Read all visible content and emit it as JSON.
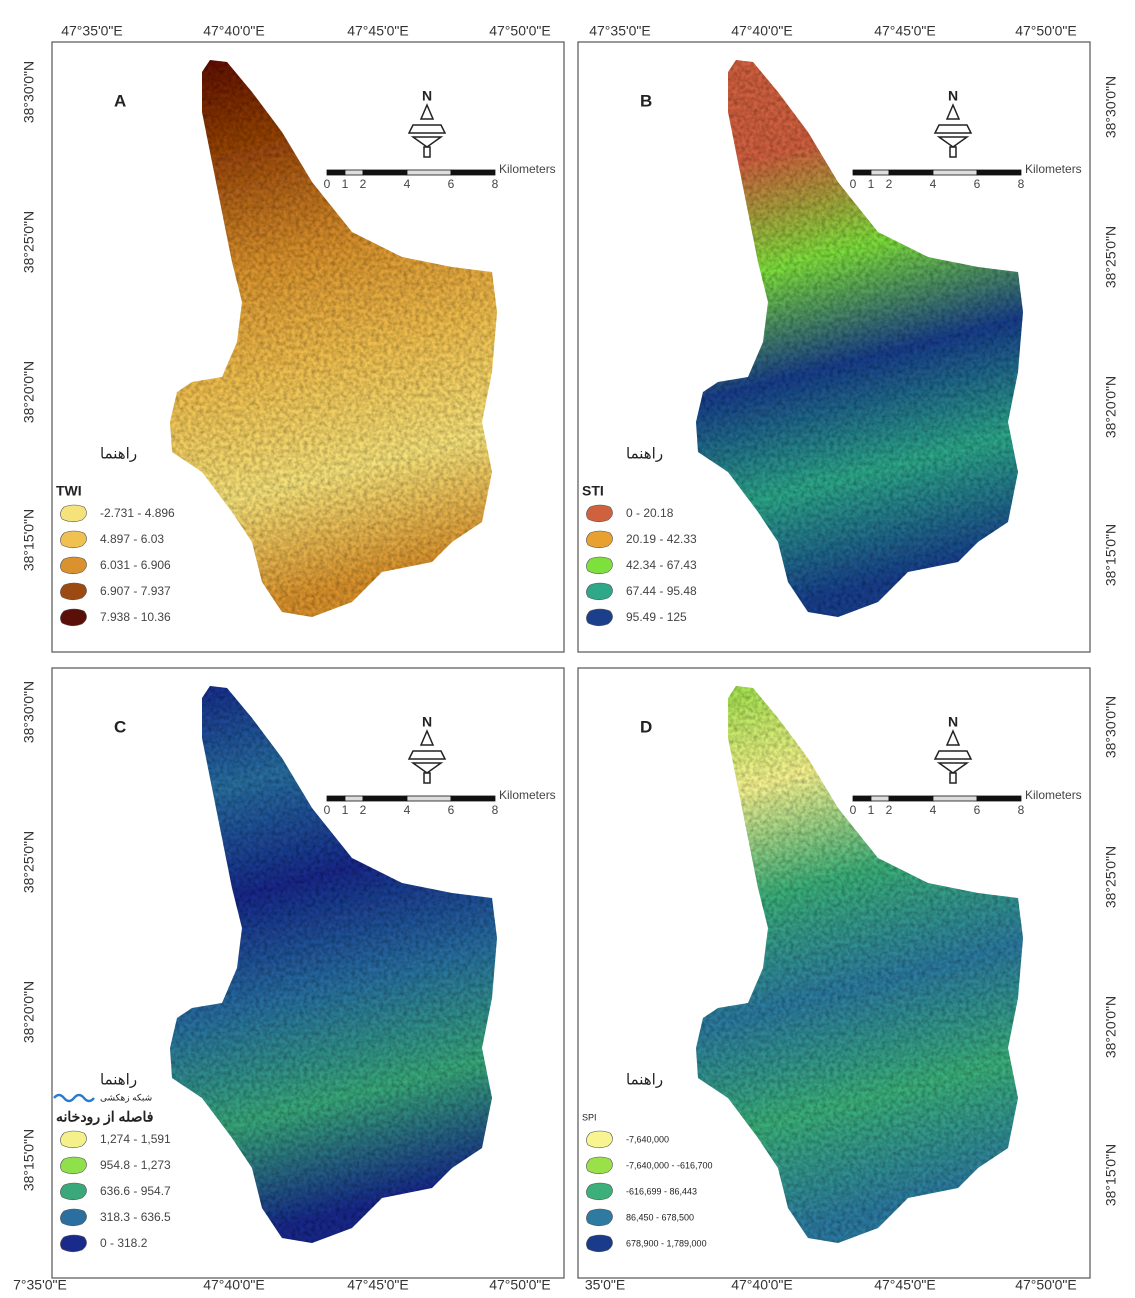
{
  "top_axis_labels": [
    "47°35'0\"E",
    "47°40'0\"E",
    "47°45'0\"E",
    "47°50'0\"E",
    "47°35'0\"E",
    "47°40'0\"E",
    "47°45'0\"E",
    "47°50'0\"E"
  ],
  "bottom_axis_labels": [
    "7°35'0\"E",
    "47°40'0\"E",
    "47°45'0\"E",
    "47°50'0\"E",
    "35'0\"E",
    "47°40'0\"E",
    "47°45'0\"E",
    "47°50'0\"E"
  ],
  "left_axis_labels": [
    "38°30'0\"N",
    "38°25'0\"N",
    "38°20'0\"N",
    "38°15'0\"N",
    "38°30'0\"N",
    "38°25'0\"N",
    "38°20'0\"N",
    "38°15'0\"N"
  ],
  "right_axis_labels": [
    "38°30'0\"N",
    "38°25'0\"N",
    "38°20'0\"N",
    "38°15'0\"N",
    "38°30'0\"N",
    "38°25'0\"N",
    "38°20'0\"N",
    "38°15'0\"N"
  ],
  "scale_labels": [
    "0",
    "1",
    "2",
    "4",
    "6",
    "8"
  ],
  "scale_unit": "Kilometers",
  "north": "N",
  "panels": [
    {
      "letter": "A",
      "legend_heading": "راهنما",
      "legend_title": "TWI",
      "legend_items": [
        {
          "label": "-2.731 - 4.896",
          "color": "#f6e27a"
        },
        {
          "label": "4.897 - 6.03",
          "color": "#f0c050"
        },
        {
          "label": "6.031 - 6.906",
          "color": "#d9922e"
        },
        {
          "label": "6.907 - 7.937",
          "color": "#9c4a12"
        },
        {
          "label": "7.938 - 10.36",
          "color": "#5a0f08"
        }
      ]
    },
    {
      "letter": "B",
      "legend_heading": "راهنما",
      "legend_title": "STI",
      "legend_items": [
        {
          "label": "0 - 20.18",
          "color": "#d0613f"
        },
        {
          "label": "20.19 - 42.33",
          "color": "#e8a030"
        },
        {
          "label": "42.34 - 67.43",
          "color": "#7ee03c"
        },
        {
          "label": "67.44 - 95.48",
          "color": "#2fa889"
        },
        {
          "label": "95.49 - 125",
          "color": "#1c3f8c"
        }
      ]
    },
    {
      "letter": "C",
      "legend_heading": "راهنما",
      "drainage_label": "شبکه زهکشی",
      "legend_title": "فاصله از رودخانه",
      "legend_items": [
        {
          "label": "1,274 - 1,591",
          "color": "#f4f08a"
        },
        {
          "label": "954.8 - 1,273",
          "color": "#8fe04a"
        },
        {
          "label": "636.6 - 954.7",
          "color": "#3aa87a"
        },
        {
          "label": "318.3 - 636.5",
          "color": "#2a6fa0"
        },
        {
          "label": "0 - 318.2",
          "color": "#1a2a8a"
        }
      ]
    },
    {
      "letter": "D",
      "legend_heading": "راهنما",
      "legend_title": "SPI",
      "legend_items": [
        {
          "label": "-7,640,000",
          "color": "#f8f490"
        },
        {
          "label": "-7,640,000 - -616,700",
          "color": "#9ae048"
        },
        {
          "label": "-616,699 - 86,443",
          "color": "#3cb07a"
        },
        {
          "label": "86,450 - 678,500",
          "color": "#2e7aa0"
        },
        {
          "label": "678,900 - 1,789,000",
          "color": "#1a3a8a"
        }
      ]
    }
  ]
}
